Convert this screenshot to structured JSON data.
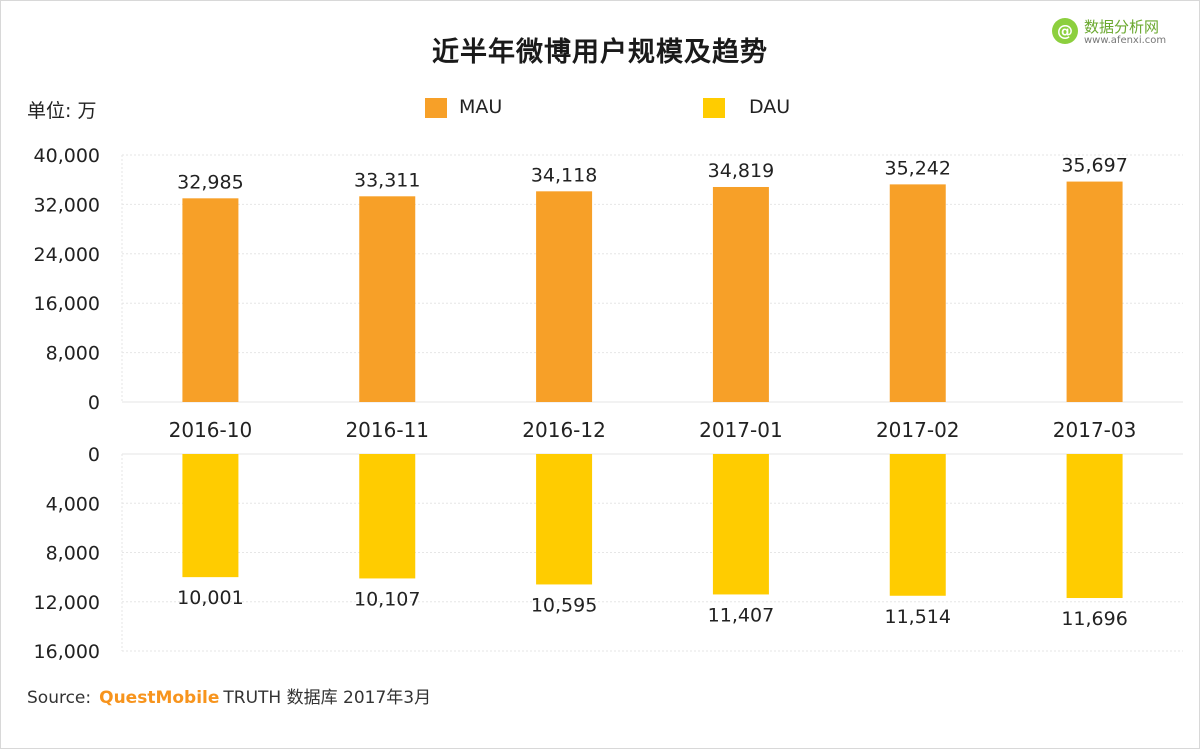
{
  "title": "近半年微博用户规模及趋势",
  "unit_label": "单位: 万",
  "legend": [
    {
      "label": "MAU",
      "color": "#f7a028"
    },
    {
      "label": "DAU",
      "color": "#ffcc00"
    }
  ],
  "logo": {
    "cn": "数据分析网",
    "en": "www.afenxi.com",
    "icon": "at-icon"
  },
  "source": {
    "prefix": "Source:",
    "brand": "QuestMobile",
    "suffix": "TRUTH 数据库 2017年3月"
  },
  "chart_data": {
    "type": "bar",
    "categories": [
      "2016-10",
      "2016-11",
      "2016-12",
      "2017-01",
      "2017-02",
      "2017-03"
    ],
    "series": [
      {
        "name": "MAU",
        "values": [
          32985,
          33311,
          34118,
          34819,
          35242,
          35697
        ],
        "labels": [
          "32,985",
          "33,311",
          "34,118",
          "34,819",
          "35,242",
          "35,697"
        ],
        "color": "#f7a028"
      },
      {
        "name": "DAU",
        "values": [
          10001,
          10107,
          10595,
          11407,
          11514,
          11696
        ],
        "labels": [
          "10,001",
          "10,107",
          "10,595",
          "11,407",
          "11,514",
          "11,696"
        ],
        "color": "#ffcc00"
      }
    ],
    "mau_axis": {
      "ylim": [
        0,
        40000
      ],
      "ticks": [
        "0",
        "8,000",
        "16,000",
        "24,000",
        "32,000",
        "40,000"
      ],
      "tick_values": [
        0,
        8000,
        16000,
        24000,
        32000,
        40000
      ]
    },
    "dau_axis": {
      "ylim": [
        0,
        16000
      ],
      "inverted": true,
      "ticks": [
        "0",
        "4,000",
        "8,000",
        "12,000",
        "16,000"
      ],
      "tick_values": [
        0,
        4000,
        8000,
        12000,
        16000
      ]
    },
    "grid": true,
    "legend_position": "top-center"
  }
}
